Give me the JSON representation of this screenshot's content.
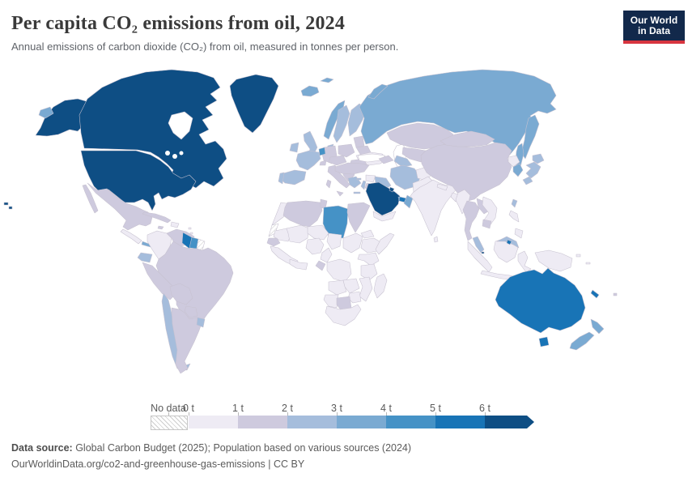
{
  "header": {
    "title": "Per capita CO₂ emissions from oil, 2024",
    "subtitle": "Annual emissions of carbon dioxide (CO₂) from oil, measured in tonnes per person.",
    "logo_line1": "Our World",
    "logo_line2": "in Data",
    "logo_bg": "#12294b",
    "logo_accent": "#d7353f"
  },
  "legend": {
    "no_data_label": "No data",
    "ticks": [
      "0 t",
      "1 t",
      "2 t",
      "3 t",
      "4 t",
      "5 t",
      "6 t"
    ],
    "band_colors": [
      "#eeebf4",
      "#cecade",
      "#a5bddc",
      "#7aaad2",
      "#4592c6",
      "#1874b6",
      "#0e4e84"
    ]
  },
  "footer": {
    "source_label": "Data source:",
    "source_text": " Global Carbon Budget (2025); Population based on various sources (2024)",
    "link_text": "OurWorldinData.org/co2-and-greenhouse-gas-emissions | CC BY"
  },
  "map": {
    "ocean_color": "#ffffff",
    "border_color": "#c7c2d0",
    "no_data_pattern": "diagonal-hatch",
    "countries": {
      "usa": 6,
      "hawaii": 6,
      "canada": 6,
      "greenland": 6,
      "mexico": 1,
      "central_america": 0,
      "panama": 3,
      "cuba": 1,
      "hispaniola": 0,
      "jamaica": 1,
      "antilles": 0,
      "colombia": 0,
      "venezuela": 1,
      "guyana": 5,
      "suriname": 4,
      "french_guiana": "nodata",
      "ecuador": 2,
      "peru": 1,
      "brazil": 1,
      "bolivia": 1,
      "paraguay": 1,
      "chile": 2,
      "argentina": 1,
      "uruguay": 2,
      "iceland": 3,
      "uk": 2,
      "ireland": 2,
      "norway": 3,
      "sweden": 2,
      "finland": 2,
      "denmark": 2,
      "baltics": 1,
      "poland": 1,
      "germany": 1,
      "benelux": 4,
      "france": 2,
      "spain": 2,
      "portugal": 2,
      "switzerland": 1,
      "austria_czechia": 1,
      "italy": 1,
      "balkans": 1,
      "romania": 1,
      "greece": 2,
      "cyprus": 2,
      "ukraine": 0,
      "belarus": 1,
      "russia": 3,
      "russia_kamchatka": 3,
      "russia_sakhalin": 3,
      "russia_novaya_zemlya": 3,
      "russia_wrap_fragment": 3,
      "svalbard": 3,
      "turkey": 1,
      "caucasus": 1,
      "kazakhstan": 1,
      "uzbekistan": 1,
      "turkmenistan": 2,
      "iran": 2,
      "iraq": 2,
      "syria": 0,
      "lebanon_israel": 2,
      "jordan": 1,
      "saudi_arabia": 6,
      "kuwait": 6,
      "qatar": 5,
      "uae": 5,
      "oman": 3,
      "yemen": 0,
      "afghanistan": 0,
      "pakistan": 0,
      "india": 0,
      "sri_lanka": 0,
      "nepal": 0,
      "bangladesh": 0,
      "china": 1,
      "mongolia": 1,
      "north_korea": 0,
      "south_korea": 3,
      "japan": 2,
      "taiwan": 2,
      "myanmar": 0,
      "thailand": 1,
      "laos": 1,
      "vietnam": 0,
      "cambodia": 1,
      "malaysia": 2,
      "malaysia_borneo": 2,
      "brunei": 5,
      "singapore": 6,
      "sumatra": 0,
      "borneo": 0,
      "java": 0,
      "sulawesi": 0,
      "timor": 0,
      "philippines_luzon": 0,
      "philippines_mindanao": 0,
      "new_guinea": 0,
      "png_islands": 0,
      "australia": 5,
      "tasmania": 5,
      "new_zealand_north": 3,
      "new_zealand_south": 3,
      "new_caledonia": 5,
      "fiji": 1,
      "morocco": 0,
      "western_sahara": "nodata",
      "algeria": 1,
      "tunisia": 1,
      "libya": 4,
      "egypt": 1,
      "mauritania": 0,
      "senegal": 1,
      "mali": 0,
      "niger": 0,
      "chad": 0,
      "sudan": 0,
      "west_africa": 0,
      "ghana_cote": 0,
      "nigeria": 0,
      "cameroon": 0,
      "eritrea": 0,
      "ethiopia": 0,
      "somalia": 0,
      "kenya_uganda": 0,
      "drc": 0,
      "gabon": 1,
      "tanzania": 0,
      "angola": 0,
      "zambia": 0,
      "mozambique": 0,
      "zimbabwe": 0,
      "namibia": 0,
      "botswana": 1,
      "south_africa": 0,
      "madagascar": 0
    }
  },
  "chart_data": {
    "type": "choropleth_map",
    "title": "Per capita CO₂ emissions from oil, 2024",
    "unit": "tonnes of CO₂ per person",
    "year": "2024",
    "legend_position": "bottom",
    "scale_ticks": [
      "0 t",
      "1 t",
      "2 t",
      "3 t",
      "4 t",
      "5 t",
      "6 t"
    ],
    "band_labels": [
      "0–1 t",
      "1–2 t",
      "2–3 t",
      "3–4 t",
      "4–5 t",
      "5–6 t",
      "6+ t",
      "No data"
    ],
    "regions_by_band": {
      "6+ t": [
        "United States",
        "Canada",
        "Greenland",
        "Saudi Arabia",
        "Kuwait",
        "Singapore"
      ],
      "5–6 t": [
        "Australia",
        "Guyana",
        "Brunei",
        "United Arab Emirates",
        "Qatar",
        "New Caledonia"
      ],
      "4–5 t": [
        "Libya",
        "Suriname"
      ],
      "3–4 t": [
        "Russia",
        "Norway",
        "Iceland",
        "South Korea",
        "New Zealand",
        "Oman",
        "Panama"
      ],
      "2–3 t": [
        "Spain",
        "France",
        "United Kingdom",
        "Ireland",
        "Sweden",
        "Finland",
        "Denmark",
        "Greece",
        "Portugal",
        "Japan",
        "Taiwan",
        "Iran",
        "Iraq",
        "Turkmenistan",
        "Malaysia",
        "Chile",
        "Ecuador",
        "Uruguay",
        "Israel",
        "Cyprus"
      ],
      "1–2 t": [
        "Mexico",
        "Brazil",
        "Argentina",
        "Peru",
        "Venezuela",
        "Bolivia",
        "Paraguay",
        "Cuba",
        "Jamaica",
        "Germany",
        "Poland",
        "Italy",
        "Balkans",
        "Romania",
        "Belarus",
        "Baltics",
        "Turkey",
        "Kazakhstan",
        "Uzbekistan",
        "China",
        "Mongolia",
        "Thailand",
        "Laos",
        "Cambodia",
        "Algeria",
        "Tunisia",
        "Egypt",
        "Senegal",
        "Gabon",
        "Botswana",
        "Caucasus",
        "Jordan",
        "Fiji"
      ],
      "0–1 t": [
        "India",
        "Pakistan",
        "Afghanistan",
        "Indonesia",
        "Philippines",
        "Vietnam",
        "Myanmar",
        "Bangladesh",
        "Sri Lanka",
        "Nepal",
        "North Korea",
        "Ukraine",
        "Syria",
        "Yemen",
        "Colombia",
        "Central America",
        "most of Africa",
        "Papua New Guinea"
      ],
      "No data": [
        "Western Sahara",
        "French Guiana"
      ]
    }
  }
}
